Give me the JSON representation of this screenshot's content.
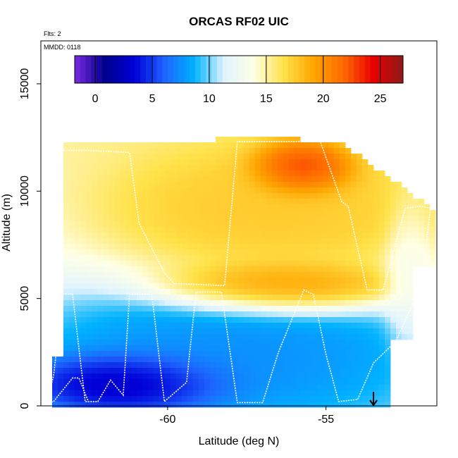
{
  "chart_data": {
    "type": "heatmap",
    "title": "ORCAS RF02 UIC",
    "xlabel": "Latitude (deg N)",
    "ylabel": "Altitude (m)",
    "annotations": [
      "Flts: 2",
      "MMDD: 0118"
    ],
    "xlim": [
      -64.0,
      -51.5
    ],
    "ylim": [
      0,
      17000
    ],
    "x_ticks": [
      -60,
      -55
    ],
    "x_tick_labels": [
      "-60",
      "-55"
    ],
    "y_ticks": [
      0,
      5000,
      10000,
      15000
    ],
    "y_tick_labels": [
      "0",
      "5000",
      "10000",
      "15000"
    ],
    "colorbar": {
      "min": -1.8,
      "max": 27.0,
      "ticks": [
        0,
        5,
        10,
        15,
        20,
        25
      ],
      "tick_labels": [
        "0",
        "5",
        "10",
        "15",
        "20",
        "25"
      ],
      "colors": [
        "#7b2be0",
        "#00008b",
        "#0000d8",
        "#1e63ff",
        "#00b2ff",
        "#dff3ff",
        "#ffffe6",
        "#ffe24a",
        "#ffa500",
        "#ff6a00",
        "#e80000",
        "#8b1a1a"
      ]
    },
    "grid": false,
    "field_regions": [
      {
        "name": "boundary-layer-cold",
        "lat_range": [
          -63.7,
          -58.8
        ],
        "alt_range": [
          0,
          2200
        ],
        "value": 0.5
      },
      {
        "name": "lower-troposphere",
        "lat_range": [
          -63.3,
          -53.0
        ],
        "alt_range": [
          0,
          5000
        ],
        "value": 7
      },
      {
        "name": "mid-level-warm-band",
        "lat_range": [
          -59.5,
          -53.5
        ],
        "alt_range": [
          4500,
          6500
        ],
        "value": 21
      },
      {
        "name": "upper-warm-core",
        "lat_range": [
          -60.8,
          -52.5
        ],
        "alt_range": [
          6500,
          11500
        ],
        "value": 18
      },
      {
        "name": "upper-max",
        "lat_range": [
          -57.0,
          -54.5
        ],
        "alt_range": [
          10000,
          12000
        ],
        "value": 25
      },
      {
        "name": "northern-cold-column",
        "lat_range": [
          -53.0,
          -51.8
        ],
        "alt_range": [
          3000,
          9000
        ],
        "value": 13
      }
    ],
    "flight_track": {
      "lat": [
        -63.3,
        -63.3,
        -62.6,
        -61.2,
        -60.9,
        -60.1,
        -59.8,
        -58.2,
        -57.8,
        -57.0,
        -56.0,
        -55.2,
        -54.5,
        -54.3,
        -53.7,
        -53.2,
        -52.5,
        -52.0,
        -51.7,
        -52.0,
        -52.8,
        -53.5,
        -54.0,
        -54.6,
        -55.0,
        -55.4,
        -55.7,
        -56.5,
        -57.0,
        -57.8,
        -58.3,
        -59.1,
        -59.4,
        -60.1,
        -60.5,
        -61.2,
        -61.4,
        -61.8,
        -62.2,
        -62.6,
        -63.0,
        -63.3,
        -63.6,
        -63.8,
        -63.6,
        -63.0,
        -62.8,
        -62.5
      ],
      "alt": [
        12000,
        11900,
        11900,
        11800,
        8500,
        6200,
        5700,
        5600,
        12300,
        12300,
        12300,
        12400,
        9500,
        9300,
        5400,
        5400,
        9200,
        9300,
        9200,
        5600,
        3000,
        2000,
        300,
        200,
        2400,
        5200,
        5400,
        2500,
        150,
        150,
        5300,
        5300,
        1100,
        200,
        5200,
        5200,
        500,
        1200,
        200,
        200,
        5200,
        5200,
        1400,
        200,
        200,
        1300,
        1300,
        200
      ],
      "marker_lat": -53.5,
      "marker_alt": 0
    }
  }
}
